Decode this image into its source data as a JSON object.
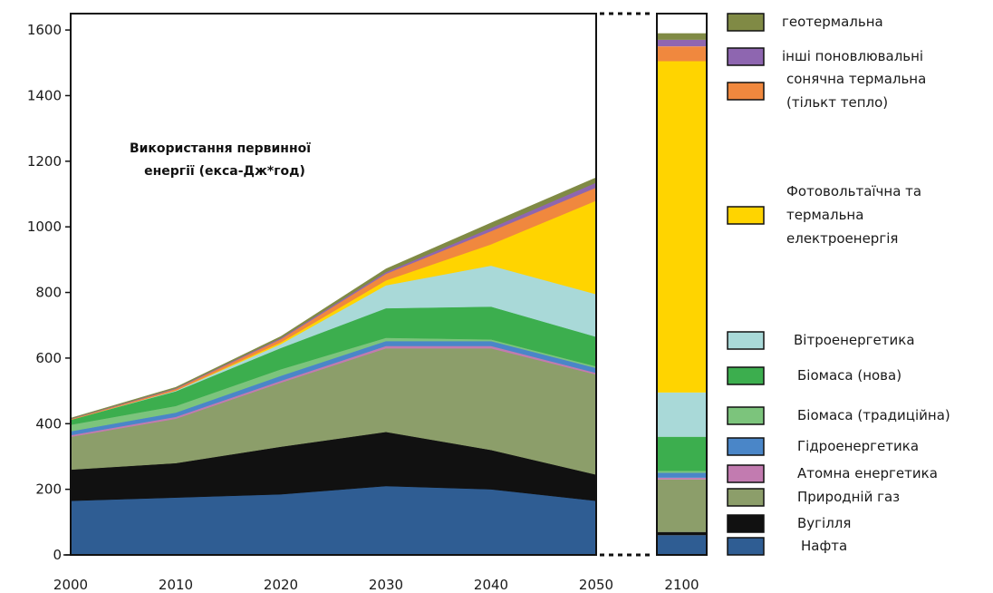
{
  "chart_data": {
    "type": "area",
    "annotation_lines": [
      "Використання первинної",
      "енергії (екса-Дж*год)"
    ],
    "x": [
      2000,
      2010,
      2020,
      2030,
      2040,
      2050
    ],
    "xticks": [
      "2000",
      "2010",
      "2020",
      "2030",
      "2040",
      "2050"
    ],
    "inset_x": "2100",
    "yticks": [
      "0",
      "200",
      "400",
      "600",
      "800",
      "1000",
      "1200",
      "1400",
      "1600"
    ],
    "ylim": [
      0,
      1650
    ],
    "grid": false,
    "legend_position": "right",
    "series": [
      {
        "name": "Нафта",
        "color": "#2f5d93",
        "values": [
          165,
          175,
          185,
          210,
          200,
          165
        ],
        "value_2100": 60
      },
      {
        "name": "Вугілля",
        "color": "#111111",
        "values": [
          95,
          105,
          145,
          165,
          120,
          80
        ],
        "value_2100": 10
      },
      {
        "name": "Природній газ",
        "color": "#8c9e6a",
        "values": [
          100,
          135,
          195,
          255,
          310,
          305
        ],
        "value_2100": 160
      },
      {
        "name": "Атомна енергетика",
        "color": "#c27bb0",
        "values": [
          5,
          6,
          6,
          7,
          7,
          5
        ],
        "value_2100": 5
      },
      {
        "name": "Гідроенергетика",
        "color": "#4a86c8",
        "values": [
          12,
          13,
          15,
          15,
          15,
          15
        ],
        "value_2100": 15
      },
      {
        "name": "Біомаса (традиційна)",
        "color": "#7cc47c",
        "values": [
          20,
          20,
          20,
          10,
          5,
          5
        ],
        "value_2100": 5
      },
      {
        "name": "Біомаса (нова)",
        "color": "#3cae4e",
        "values": [
          15,
          45,
          65,
          90,
          100,
          90
        ],
        "value_2100": 105
      },
      {
        "name": "Вітроенергетика",
        "color": "#a9d9d8",
        "values": [
          0,
          2,
          12,
          70,
          125,
          130
        ],
        "value_2100": 135
      },
      {
        "name": "Фотовольтаїчна та термальна електроенергія",
        "color": "#ffd400",
        "values": [
          0,
          0,
          5,
          15,
          65,
          285
        ],
        "value_2100": 1010
      },
      {
        "name": "сонячна термальна (тількт тепло)",
        "color": "#f0883e",
        "values": [
          2,
          5,
          10,
          20,
          40,
          40
        ],
        "value_2100": 45
      },
      {
        "name": "інші поновлювальні",
        "color": "#8e66b0",
        "values": [
          1,
          2,
          3,
          5,
          10,
          15
        ],
        "value_2100": 20
      },
      {
        "name": "геотермальна",
        "color": "#808a45",
        "values": [
          2,
          3,
          5,
          10,
          15,
          15
        ],
        "value_2100": 20
      }
    ],
    "legend": [
      {
        "lines": [
          "геотермальна"
        ],
        "color": "#808a45"
      },
      {
        "lines": [
          "інші поновлювальні"
        ],
        "color": "#8e66b0"
      },
      {
        "lines": [
          "сонячна термальна",
          "(тількт тепло)"
        ],
        "color": "#f0883e"
      },
      {
        "lines": [
          "Фотовольтаїчна та",
          "термальна",
          "електроенергія"
        ],
        "color": "#ffd400"
      },
      {
        "lines": [
          "Вітроенергетика"
        ],
        "color": "#a9d9d8"
      },
      {
        "lines": [
          "Біомаса (нова)"
        ],
        "color": "#3cae4e"
      },
      {
        "lines": [
          "Біомаса (традиційна)"
        ],
        "color": "#7cc47c"
      },
      {
        "lines": [
          "Гідроенергетика"
        ],
        "color": "#4a86c8"
      },
      {
        "lines": [
          "Атомна енергетика"
        ],
        "color": "#c27bb0"
      },
      {
        "lines": [
          "Природній газ"
        ],
        "color": "#8c9e6a"
      },
      {
        "lines": [
          "Вугілля"
        ],
        "color": "#111111"
      },
      {
        "lines": [
          "Нафта"
        ],
        "color": "#2f5d93"
      }
    ]
  }
}
